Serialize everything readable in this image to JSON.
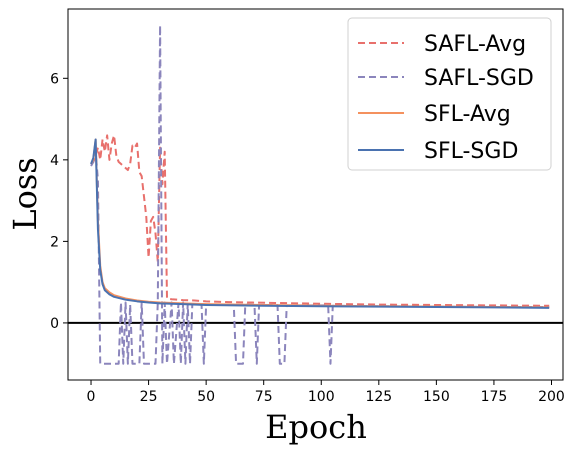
{
  "chart_data": {
    "type": "line",
    "xlabel": "Epoch",
    "ylabel": "Loss",
    "xlim": [
      -10,
      205
    ],
    "ylim": [
      -1.4,
      7.7
    ],
    "xticks": [
      0,
      25,
      50,
      75,
      100,
      125,
      150,
      175,
      200
    ],
    "yticks": [
      0,
      2,
      4,
      6
    ],
    "hline": {
      "y": 0,
      "color": "#000000"
    },
    "legend_position": "top-right",
    "series": [
      {
        "name": "SAFL-Avg",
        "color": "#e8706c",
        "dash": true,
        "points": [
          [
            0,
            3.9
          ],
          [
            1,
            3.95
          ],
          [
            2,
            4.1
          ],
          [
            3,
            4.3
          ],
          [
            4,
            4.0
          ],
          [
            5,
            4.5
          ],
          [
            6,
            4.2
          ],
          [
            7,
            4.6
          ],
          [
            8,
            4.0
          ],
          [
            9,
            4.4
          ],
          [
            10,
            4.6
          ],
          [
            11,
            4.1
          ],
          [
            12,
            3.95
          ],
          [
            13,
            3.9
          ],
          [
            14,
            3.85
          ],
          [
            15,
            3.8
          ],
          [
            16,
            3.75
          ],
          [
            17,
            3.9
          ],
          [
            18,
            4.35
          ],
          [
            19,
            4.3
          ],
          [
            20,
            4.4
          ],
          [
            21,
            3.7
          ],
          [
            22,
            3.6
          ],
          [
            23,
            3.1
          ],
          [
            24,
            2.6
          ],
          [
            25,
            1.6
          ],
          [
            26,
            2.5
          ],
          [
            27,
            2.6
          ],
          [
            28,
            2.2
          ],
          [
            29,
            1.5
          ],
          [
            30,
            4.3
          ],
          [
            31,
            3.4
          ],
          [
            32,
            4.2
          ],
          [
            33,
            0.6
          ],
          [
            35,
            0.58
          ],
          [
            40,
            0.56
          ],
          [
            45,
            0.55
          ],
          [
            50,
            0.53
          ],
          [
            60,
            0.51
          ],
          [
            70,
            0.5
          ],
          [
            80,
            0.49
          ],
          [
            90,
            0.48
          ],
          [
            100,
            0.47
          ],
          [
            125,
            0.45
          ],
          [
            150,
            0.44
          ],
          [
            175,
            0.43
          ],
          [
            199,
            0.42
          ]
        ]
      },
      {
        "name": "SAFL-SGD",
        "color": "#8b85bc",
        "dash": true,
        "points": [
          [
            0,
            3.85
          ],
          [
            1,
            3.95
          ],
          [
            2,
            4.2
          ],
          [
            3,
            3.5
          ],
          [
            4,
            -1.0
          ],
          [
            10,
            -1.0
          ],
          [
            12,
            -1.0
          ],
          [
            13,
            0.5
          ],
          [
            14,
            -1.0
          ],
          [
            15,
            0.5
          ],
          [
            16,
            -1.0
          ],
          [
            17,
            0.45
          ],
          [
            18,
            -1.0
          ],
          [
            21,
            -1.0
          ],
          [
            22,
            0.5
          ],
          [
            23,
            -1.0
          ],
          [
            28,
            -1.0
          ],
          [
            29,
            0.5
          ],
          [
            30,
            7.3
          ],
          [
            31,
            -1.0
          ],
          [
            32,
            0.5
          ],
          [
            33,
            -1.0
          ],
          [
            35,
            0.5
          ],
          [
            36,
            -1.0
          ],
          [
            38,
            0.48
          ],
          [
            39,
            -1.0
          ],
          [
            40,
            0.5
          ],
          [
            41,
            -1.0
          ],
          [
            42,
            0.47
          ],
          [
            43,
            -1.0
          ],
          [
            44,
            0.46
          ],
          [
            45,
            0.46
          ],
          [
            48,
            0.46
          ],
          [
            49,
            -1.0
          ],
          [
            50,
            0.45
          ],
          [
            62,
            0.45
          ],
          [
            63,
            -1.0
          ],
          [
            66,
            -1.0
          ],
          [
            67,
            0.45
          ],
          [
            71,
            0.44
          ],
          [
            72,
            -1.0
          ],
          [
            73,
            0.44
          ],
          [
            81,
            0.44
          ],
          [
            82,
            -1.0
          ],
          [
            84,
            -1.0
          ],
          [
            85,
            0.43
          ],
          [
            103,
            0.43
          ],
          [
            104,
            -1.0
          ],
          [
            105,
            0.42
          ],
          [
            125,
            0.41
          ],
          [
            150,
            0.4
          ],
          [
            175,
            0.39
          ],
          [
            199,
            0.39
          ]
        ]
      },
      {
        "name": "SFL-Avg",
        "color": "#f4915e",
        "dash": false,
        "points": [
          [
            0,
            3.9
          ],
          [
            1,
            4.0
          ],
          [
            2,
            4.5
          ],
          [
            3,
            2.5
          ],
          [
            4,
            1.4
          ],
          [
            5,
            1.0
          ],
          [
            6,
            0.85
          ],
          [
            8,
            0.75
          ],
          [
            10,
            0.68
          ],
          [
            15,
            0.6
          ],
          [
            20,
            0.55
          ],
          [
            25,
            0.52
          ],
          [
            30,
            0.5
          ],
          [
            40,
            0.48
          ],
          [
            50,
            0.46
          ],
          [
            75,
            0.44
          ],
          [
            100,
            0.42
          ],
          [
            125,
            0.41
          ],
          [
            150,
            0.4
          ],
          [
            175,
            0.39
          ],
          [
            199,
            0.38
          ]
        ]
      },
      {
        "name": "SFL-SGD",
        "color": "#4a72b0",
        "dash": false,
        "points": [
          [
            0,
            3.9
          ],
          [
            1,
            4.05
          ],
          [
            2,
            4.5
          ],
          [
            3,
            2.3
          ],
          [
            4,
            1.3
          ],
          [
            5,
            0.95
          ],
          [
            6,
            0.8
          ],
          [
            8,
            0.7
          ],
          [
            10,
            0.64
          ],
          [
            15,
            0.57
          ],
          [
            20,
            0.53
          ],
          [
            25,
            0.5
          ],
          [
            30,
            0.48
          ],
          [
            40,
            0.46
          ],
          [
            50,
            0.44
          ],
          [
            75,
            0.42
          ],
          [
            100,
            0.41
          ],
          [
            125,
            0.4
          ],
          [
            150,
            0.39
          ],
          [
            175,
            0.38
          ],
          [
            199,
            0.37
          ]
        ]
      }
    ]
  }
}
